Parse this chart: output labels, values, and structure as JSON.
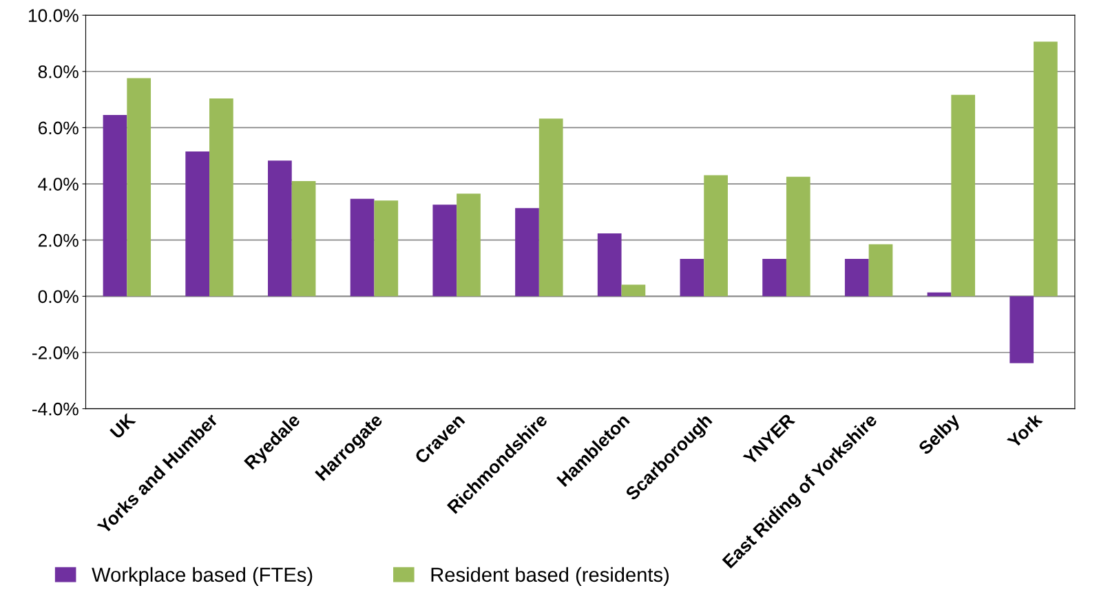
{
  "chart_data": {
    "type": "bar",
    "categories": [
      "UK",
      "Yorks and Humber",
      "Ryedale",
      "Harrogate",
      "Craven",
      "Richmondshire",
      "Hambleton",
      "Scarborough",
      "YNYER",
      "East Riding of Yorkshire",
      "Selby",
      "York"
    ],
    "series": [
      {
        "name": "Workplace based (FTEs)",
        "color": "#7030a0",
        "values": [
          6.45,
          5.15,
          4.83,
          3.47,
          3.26,
          3.14,
          2.24,
          1.33,
          1.33,
          1.33,
          0.14,
          -2.38
        ]
      },
      {
        "name": "Resident based (residents)",
        "color": "#9bbb59",
        "values": [
          7.76,
          7.04,
          4.1,
          3.41,
          3.65,
          6.32,
          0.41,
          4.31,
          4.25,
          1.85,
          7.17,
          9.06
        ]
      }
    ],
    "ylim": [
      -4,
      10
    ],
    "yticks": [
      {
        "value": -4,
        "label": "-4.0%"
      },
      {
        "value": -2,
        "label": "-2.0%"
      },
      {
        "value": 0,
        "label": "0.0%"
      },
      {
        "value": 2,
        "label": "2.0%"
      },
      {
        "value": 4,
        "label": "4.0%"
      },
      {
        "value": 6,
        "label": "6.0%"
      },
      {
        "value": 8,
        "label": "8.0%"
      },
      {
        "value": 10,
        "label": "10.0%"
      }
    ],
    "grid": "y",
    "legend": "bottom"
  }
}
